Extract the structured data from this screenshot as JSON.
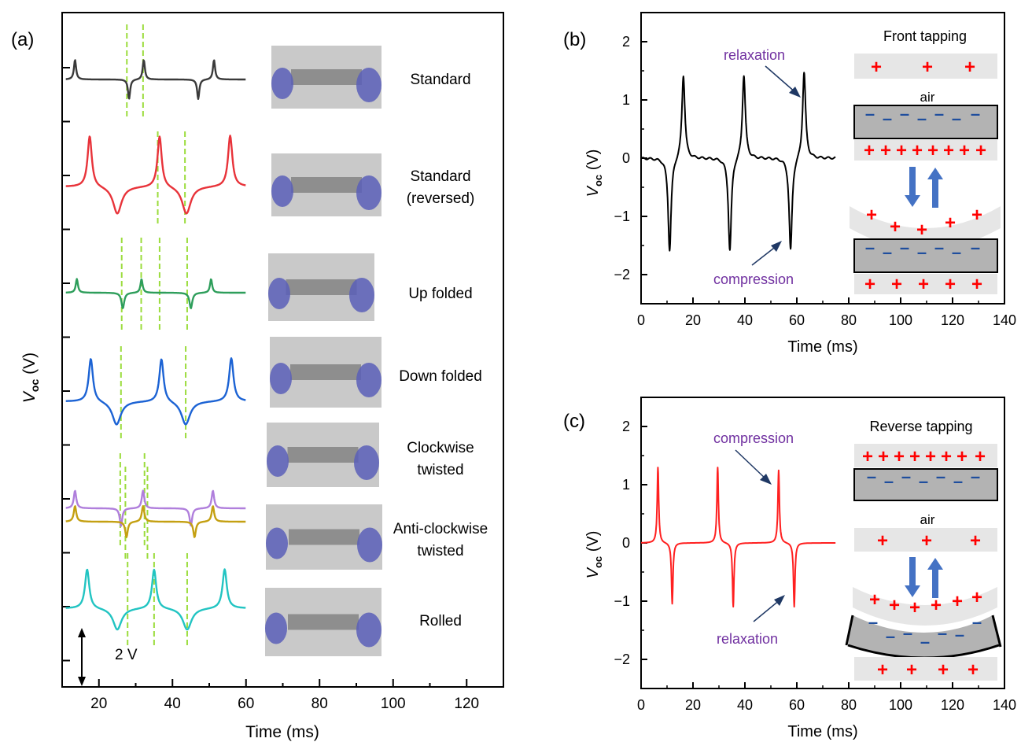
{
  "chart_data": [
    {
      "panel": "a",
      "panel_label": "(a)",
      "type": "line",
      "xlabel": "Time (ms)",
      "ylabel_main": "V",
      "ylabel_sub": "oc",
      "ylabel_unit": " (V)",
      "xlim": [
        10,
        130
      ],
      "xticks": [
        20,
        40,
        60,
        80,
        100,
        120
      ],
      "scale_bar_label": "2 V",
      "series": [
        {
          "name": "Standard",
          "color": "#3a3a3a",
          "events": [
            [
              13.5,
              1.0,
              0.35
            ],
            [
              28.2,
              -1.0,
              0.35
            ],
            [
              32.2,
              1.0,
              0.35
            ],
            [
              47.0,
              -1.0,
              0.35
            ],
            [
              51.3,
              1.0,
              0.35
            ]
          ],
          "guides": [
            27.6,
            32.0
          ]
        },
        {
          "name": "Standard (reversed)",
          "color": "#e8333a",
          "events": [
            [
              17.5,
              2.6,
              0.7
            ],
            [
              25.0,
              -1.4,
              1.4
            ],
            [
              36.5,
              2.6,
              0.7
            ],
            [
              43.8,
              -1.4,
              1.4
            ],
            [
              55.7,
              2.6,
              0.7
            ]
          ],
          "guides": [
            36.0,
            43.4
          ]
        },
        {
          "name": "Up folded",
          "color": "#2e9e5b",
          "events": [
            [
              14.0,
              0.7,
              0.35
            ],
            [
              26.5,
              -0.8,
              0.45
            ],
            [
              31.6,
              0.7,
              0.35
            ],
            [
              45.0,
              -0.8,
              0.45
            ],
            [
              50.5,
              0.7,
              0.35
            ]
          ],
          "guides": [
            26.2,
            31.5,
            36.5,
            44.0
          ]
        },
        {
          "name": "Down folded",
          "color": "#1c63d4",
          "events": [
            [
              17.8,
              2.2,
              0.7
            ],
            [
              24.8,
              -1.2,
              1.4
            ],
            [
              37.0,
              2.2,
              0.7
            ],
            [
              43.6,
              -1.2,
              1.4
            ],
            [
              56.0,
              2.2,
              0.7
            ]
          ],
          "guides": [
            26.0,
            43.6
          ]
        },
        {
          "name": "Clockwise twisted",
          "color": "#b07fdc",
          "events": [
            [
              13.5,
              0.9,
              0.4
            ],
            [
              26.0,
              -0.9,
              0.4
            ],
            [
              32.0,
              0.9,
              0.4
            ],
            [
              45.0,
              -0.9,
              0.4
            ],
            [
              51.0,
              0.9,
              0.4
            ]
          ],
          "guides": [
            25.8,
            32.4
          ]
        },
        {
          "name": "Anti-clockwise twisted",
          "color": "#c4a012",
          "events": [
            [
              13.5,
              0.8,
              0.4
            ],
            [
              27.5,
              -0.8,
              0.4
            ],
            [
              32.0,
              0.8,
              0.4
            ],
            [
              46.0,
              -0.8,
              0.4
            ],
            [
              51.0,
              0.8,
              0.4
            ]
          ],
          "guides": [
            27.2,
            33.2
          ]
        },
        {
          "name": "Rolled",
          "color": "#22c4c2",
          "events": [
            [
              16.8,
              2.0,
              0.7
            ],
            [
              25.0,
              -1.1,
              1.4
            ],
            [
              35.0,
              2.0,
              0.7
            ],
            [
              44.0,
              -1.1,
              1.4
            ],
            [
              54.2,
              2.0,
              0.7
            ]
          ],
          "guides": [
            27.8,
            35.0,
            44.0
          ]
        }
      ],
      "sample_labels": [
        [
          "Standard"
        ],
        [
          "Standard",
          "(reversed)"
        ],
        [
          "Up folded"
        ],
        [
          "Down folded"
        ],
        [
          "Clockwise",
          "twisted"
        ],
        [
          "Anti-clockwise",
          "twisted"
        ],
        [
          "Rolled"
        ]
      ]
    },
    {
      "panel": "b",
      "panel_label": "(b)",
      "type": "line",
      "xlabel": "Time (ms)",
      "ylabel_main": "V",
      "ylabel_sub": "oc",
      "ylabel_unit": " (V)",
      "xlim": [
        0,
        140
      ],
      "ylim": [
        -2.5,
        2.5
      ],
      "xticks": [
        0,
        20,
        40,
        60,
        80,
        100,
        120,
        140
      ],
      "yticks": [
        -2,
        -1,
        0,
        1,
        2
      ],
      "series": [
        {
          "name": "",
          "color": "#000000",
          "events": [
            [
              11.0,
              -1.6,
              0.7
            ],
            [
              16.3,
              1.45,
              0.7
            ],
            [
              34.2,
              -1.6,
              0.7
            ],
            [
              39.6,
              1.45,
              0.7
            ],
            [
              57.6,
              -1.6,
              0.7
            ],
            [
              62.8,
              1.5,
              0.7
            ]
          ],
          "x_end": 75
        }
      ],
      "annotations": {
        "top": "relaxation",
        "bottom": "compression"
      },
      "inset": {
        "title": "Front tapping",
        "gap_label": "air"
      }
    },
    {
      "panel": "c",
      "panel_label": "(c)",
      "type": "line",
      "xlabel": "Time (ms)",
      "ylabel_main": "V",
      "ylabel_sub": "oc",
      "ylabel_unit": " (V)",
      "xlim": [
        0,
        140
      ],
      "ylim": [
        -2.5,
        2.5
      ],
      "xticks": [
        0,
        20,
        40,
        60,
        80,
        100,
        120,
        140
      ],
      "yticks": [
        -2,
        -1,
        0,
        1,
        2
      ],
      "series": [
        {
          "name": "",
          "color": "#ff2020",
          "events": [
            [
              6.5,
              1.3,
              0.35
            ],
            [
              12.0,
              -1.05,
              0.35
            ],
            [
              29.5,
              1.3,
              0.35
            ],
            [
              35.5,
              -1.1,
              0.35
            ],
            [
              53.0,
              1.25,
              0.35
            ],
            [
              59.0,
              -1.1,
              0.35
            ]
          ],
          "x_end": 75
        }
      ],
      "annotations": {
        "top": "compression",
        "bottom": "relaxation"
      },
      "inset": {
        "title": "Reverse tapping",
        "gap_label": "air"
      }
    }
  ],
  "colors": {
    "annotation_text": "#7030a0",
    "arrow": "#1f3864",
    "guide": "#9bdc3c",
    "plus": "#ff0000",
    "minus": "#1f4e9e",
    "inset_gray": "#b3b3b3",
    "inset_light": "#e6e6e6",
    "inset_arrow": "#4472c4"
  },
  "photos": [
    "photo-standard",
    "photo-standard-reversed",
    "photo-up-folded",
    "photo-down-folded",
    "photo-clockwise-twisted",
    "photo-anti-clockwise-twisted",
    "photo-rolled"
  ]
}
